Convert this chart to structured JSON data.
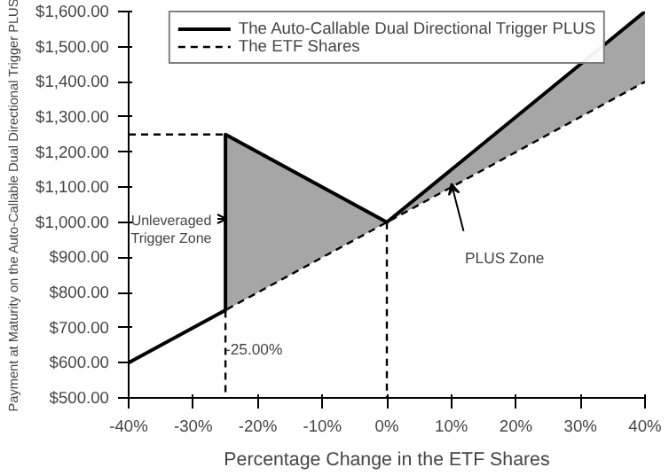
{
  "chart_data": {
    "type": "line",
    "xlabel": "Percentage Change in the ETF Shares",
    "ylabel": "Payment at Maturity on the Auto-Callable Dual Directional Trigger PLUS",
    "series": [
      {
        "name": "The Auto-Callable Dual Directional Trigger PLUS",
        "color": "#000000",
        "line_style": "solid",
        "x": [
          -40,
          -25,
          -25,
          0,
          40
        ],
        "values": [
          600,
          750,
          1250,
          1000,
          1600
        ],
        "lower": [
          600,
          750,
          750,
          1000,
          1400
        ],
        "upper": [
          600,
          750,
          1250,
          1000,
          1600
        ]
      },
      {
        "name": "The ETF Shares",
        "color": "#000000",
        "line_style": "dashed",
        "x": [
          -40,
          40
        ],
        "values": [
          600,
          1400
        ]
      },
      {
        "color": "#000000",
        "line_style": "dashed",
        "x": [
          -40,
          -25,
          -25
        ],
        "values": [
          1250,
          1250,
          500
        ]
      },
      {
        "color": "#000000",
        "line_style": "dashed",
        "x": [
          0,
          0
        ],
        "values": [
          1000,
          500
        ]
      }
    ],
    "annotations": [
      "Unleveraged Trigger Zone",
      {
        "text": "PLUS Zone",
        "x": 10,
        "y": 1110
      },
      {
        "text": "-25.00%",
        "x": -25,
        "y": 750
      }
    ],
    "xlim": [
      -40,
      40
    ],
    "ylim": [
      500,
      1600
    ],
    "xticks": [
      {
        "value": -40,
        "label": "-40%"
      },
      {
        "value": -30,
        "label": "-30%"
      },
      {
        "value": -20,
        "label": "-20%"
      },
      {
        "value": -10,
        "label": "-10%"
      },
      {
        "value": 0,
        "label": "0%"
      },
      {
        "value": 10,
        "label": "10%"
      },
      {
        "value": 20,
        "label": "20%"
      },
      {
        "value": 30,
        "label": "30%"
      },
      {
        "value": 40,
        "label": "40%"
      }
    ],
    "yticks": [
      {
        "value": 500,
        "label": "$500.00"
      },
      {
        "value": 600,
        "label": "$600.00"
      },
      {
        "value": 700,
        "label": "$700.00"
      },
      {
        "value": 800,
        "label": "$800.00"
      },
      {
        "value": 900,
        "label": "$900.00"
      },
      {
        "value": 1000,
        "label": "$1,000.00"
      },
      {
        "value": 1100,
        "label": "$1,100.00"
      },
      {
        "value": 1200,
        "label": "$1,200.00"
      },
      {
        "value": 1300,
        "label": "$1,300.00"
      },
      {
        "value": 1400,
        "label": "$1,400.00"
      },
      {
        "value": 1500,
        "label": "$1,500.00"
      },
      {
        "value": 1600,
        "label": "$1,600.00"
      }
    ],
    "grid": false,
    "legend": "top",
    "marker": "none"
  }
}
